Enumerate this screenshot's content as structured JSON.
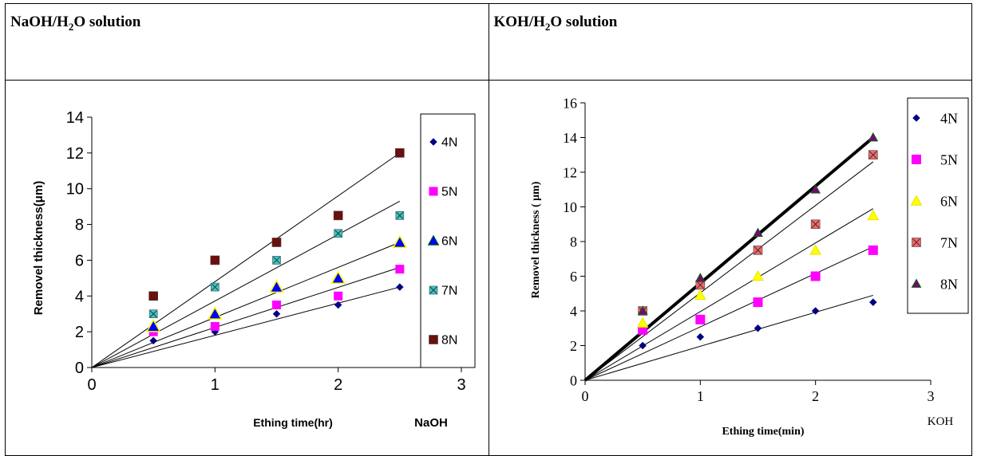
{
  "panels": [
    {
      "title_main": "NaOH/H",
      "title_sub": "2",
      "title_end": "O solution"
    },
    {
      "title_main": "KOH/H",
      "title_sub": "2",
      "title_end": "O solution"
    }
  ],
  "chart_data": [
    {
      "type": "scatter",
      "title": "",
      "xlabel": "Ething time(hr)",
      "ylabel": "Removel thickness(μm)",
      "corner_label": "NaOH",
      "xlim": [
        0,
        3
      ],
      "ylim": [
        0,
        14
      ],
      "xticks": [
        "0",
        "1",
        "2",
        "3"
      ],
      "yticks": [
        "0",
        "2",
        "4",
        "6",
        "8",
        "10",
        "12",
        "14"
      ],
      "legend_position": "right",
      "trendlines": "linear through origin",
      "series": [
        {
          "name": "4N",
          "color": "#000080",
          "marker": "diamond",
          "x": [
            0.5,
            1,
            1.5,
            2,
            2.5
          ],
          "y": [
            1.5,
            2.0,
            3.0,
            3.5,
            4.5
          ],
          "trend_end": 4.5
        },
        {
          "name": "5N",
          "color": "#ff00ff",
          "marker": "square",
          "x": [
            0.5,
            1,
            1.5,
            2,
            2.5
          ],
          "y": [
            2.0,
            2.3,
            3.5,
            4.0,
            5.5
          ],
          "trend_end": 5.6
        },
        {
          "name": "6N",
          "color": "#0000ff",
          "marker": "triangle",
          "x": [
            0.5,
            1,
            1.5,
            2,
            2.5
          ],
          "y": [
            2.3,
            3.0,
            4.5,
            5.0,
            7.0
          ],
          "trend_end": 7.0
        },
        {
          "name": "7N",
          "color": "#33cccc",
          "marker": "xsquare",
          "x": [
            0.5,
            1,
            1.5,
            2,
            2.5
          ],
          "y": [
            3.0,
            4.5,
            6.0,
            7.5,
            8.5
          ],
          "trend_end": 9.3
        },
        {
          "name": "8N",
          "color": "#800000",
          "marker": "xsquare",
          "x": [
            0.5,
            1,
            1.5,
            2,
            2.5
          ],
          "y": [
            4.0,
            6.0,
            7.0,
            8.5,
            12.0
          ],
          "trend_end": 12.0
        }
      ]
    },
    {
      "type": "scatter",
      "title": "",
      "xlabel": "Ething time(min)",
      "ylabel": "Removel thickness ( μm)",
      "corner_label": "KOH",
      "xlim": [
        0,
        3
      ],
      "ylim": [
        0,
        16
      ],
      "xticks": [
        "0",
        "1",
        "2",
        "3"
      ],
      "yticks": [
        "0",
        "2",
        "4",
        "6",
        "8",
        "10",
        "12",
        "14",
        "16"
      ],
      "legend_position": "right",
      "trendlines": "linear through origin",
      "series": [
        {
          "name": "4N",
          "color": "#000080",
          "marker": "diamond",
          "x": [
            0.5,
            1,
            1.5,
            2,
            2.5
          ],
          "y": [
            2.0,
            2.5,
            3.0,
            4.0,
            4.5
          ],
          "trend_end": 4.9
        },
        {
          "name": "5N",
          "color": "#ff00ff",
          "marker": "square",
          "x": [
            0.5,
            1,
            1.5,
            2,
            2.5
          ],
          "y": [
            2.9,
            3.5,
            4.5,
            6.0,
            7.5
          ],
          "trend_end": 7.7
        },
        {
          "name": "6N",
          "color": "#ffff00",
          "marker": "triangle",
          "x": [
            0.5,
            1,
            1.5,
            2,
            2.5
          ],
          "y": [
            3.3,
            4.9,
            6.0,
            7.5,
            9.5
          ],
          "trend_end": 9.9
        },
        {
          "name": "7N",
          "color": "#ff6666",
          "marker": "xsquare",
          "x": [
            0.5,
            1,
            1.5,
            2,
            2.5
          ],
          "y": [
            4.0,
            5.5,
            7.5,
            9.0,
            13.0
          ],
          "trend_end": 12.6
        },
        {
          "name": "8N",
          "color": "#800080",
          "marker": "triangle",
          "x": [
            0.5,
            1,
            1.5,
            2,
            2.5
          ],
          "y": [
            4.0,
            5.9,
            8.5,
            11.0,
            14.0
          ],
          "trend_end": 14.0
        }
      ]
    }
  ]
}
